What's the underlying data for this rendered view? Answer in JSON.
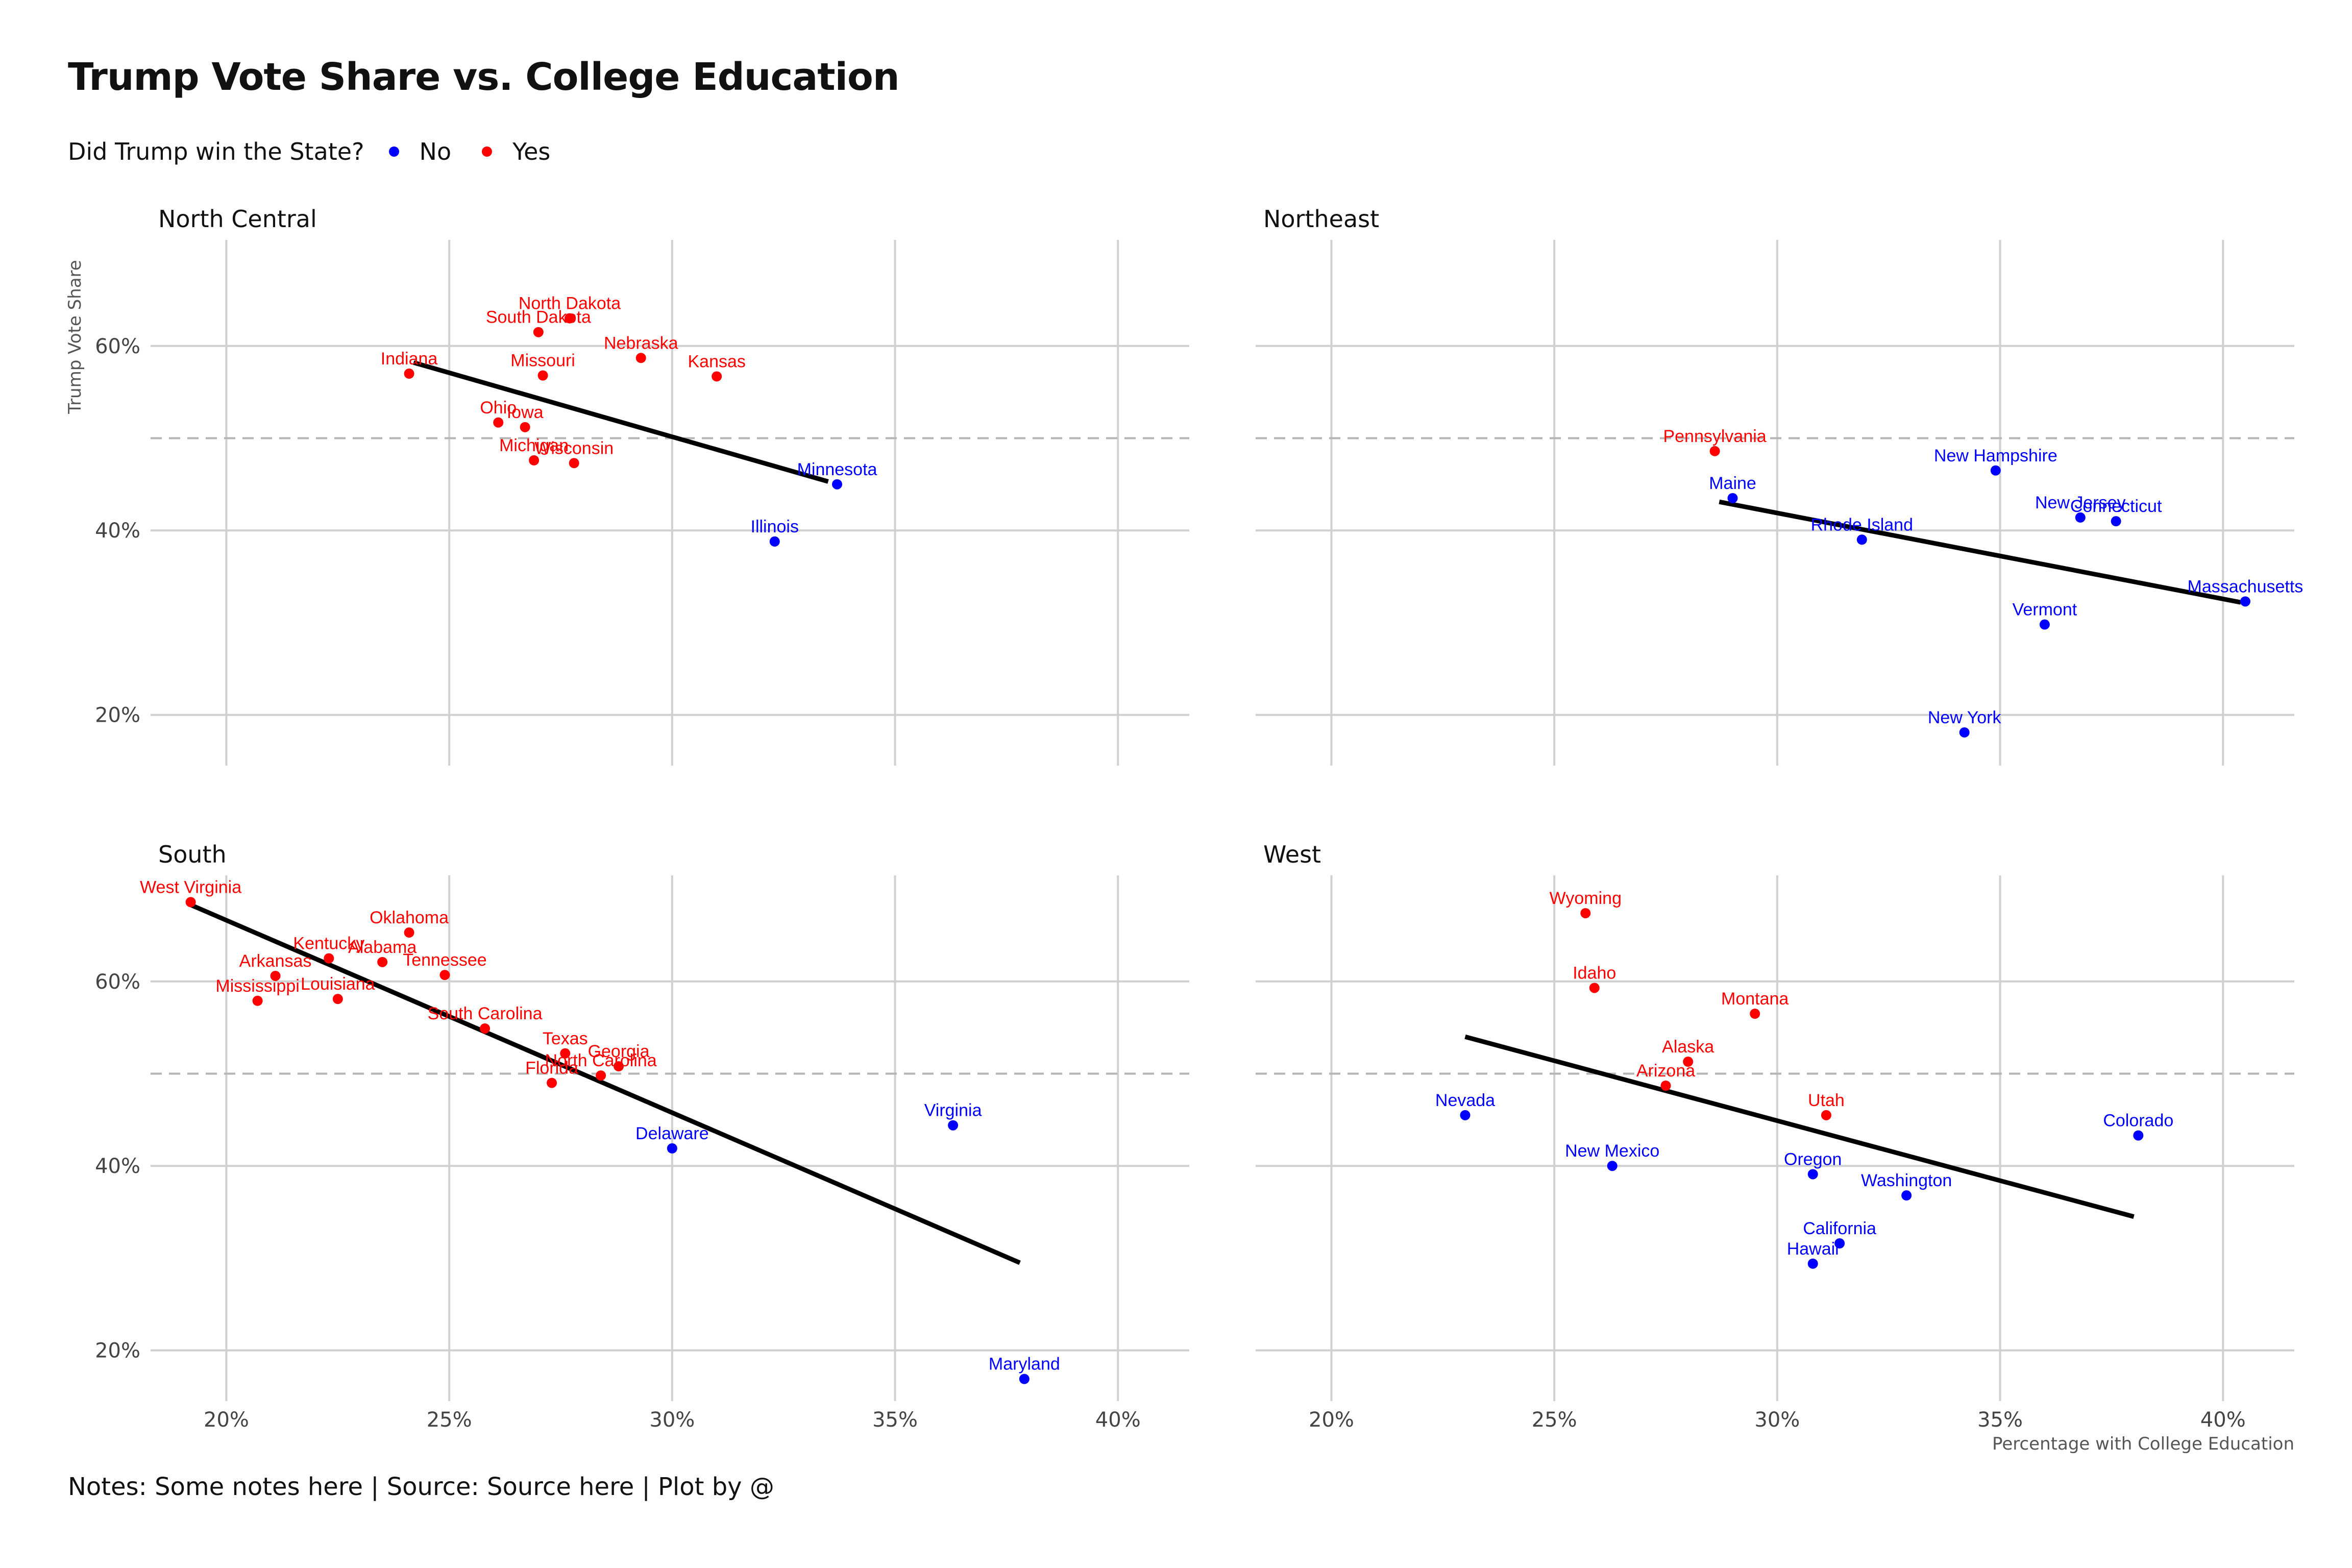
{
  "title": "Trump Vote Share vs. College Education",
  "caption": "Notes: Some notes here | Source: Source here | Plot by @",
  "legend": {
    "title": "Did Trump win the State?",
    "items": [
      {
        "label": "No",
        "color": "#0000ff"
      },
      {
        "label": "Yes",
        "color": "#ff0000"
      }
    ]
  },
  "chart_data": {
    "type": "scatter",
    "xlabel": "Percentage with College Education",
    "ylabel": "Trump Vote Share",
    "xlim": [
      18.3,
      41.6
    ],
    "ylim": [
      14.5,
      71.5
    ],
    "x_ticks": [
      20,
      25,
      30,
      35,
      40
    ],
    "x_tick_labels": [
      "20%",
      "25%",
      "30%",
      "35%",
      "40%"
    ],
    "y_ticks": [
      20,
      40,
      60
    ],
    "y_tick_labels": [
      "20%",
      "40%",
      "60%"
    ],
    "reference_line_y": 50,
    "grid": true,
    "legend_position": "top-left",
    "colors": {
      "No": "#0000ff",
      "Yes": "#ff0000"
    },
    "panels": [
      {
        "name": "North Central",
        "trend": [
          [
            24.2,
            58.2
          ],
          [
            33.5,
            45.3
          ]
        ],
        "points": [
          {
            "label": "North Dakota",
            "x": 27.7,
            "y": 63.0,
            "won": "Yes"
          },
          {
            "label": "South Dakota",
            "x": 27.0,
            "y": 61.5,
            "won": "Yes"
          },
          {
            "label": "Nebraska",
            "x": 29.3,
            "y": 58.7,
            "won": "Yes"
          },
          {
            "label": "Kansas",
            "x": 31.0,
            "y": 56.7,
            "won": "Yes"
          },
          {
            "label": "Indiana",
            "x": 24.1,
            "y": 57.0,
            "won": "Yes"
          },
          {
            "label": "Missouri",
            "x": 27.1,
            "y": 56.8,
            "won": "Yes"
          },
          {
            "label": "Ohio",
            "x": 26.1,
            "y": 51.7,
            "won": "Yes"
          },
          {
            "label": "Iowa",
            "x": 26.7,
            "y": 51.2,
            "won": "Yes"
          },
          {
            "label": "Michigan",
            "x": 26.9,
            "y": 47.6,
            "won": "Yes"
          },
          {
            "label": "Wisconsin",
            "x": 27.8,
            "y": 47.3,
            "won": "Yes"
          },
          {
            "label": "Minnesota",
            "x": 33.7,
            "y": 45.0,
            "won": "No"
          },
          {
            "label": "Illinois",
            "x": 32.3,
            "y": 38.8,
            "won": "No"
          }
        ]
      },
      {
        "name": "Northeast",
        "trend": [
          [
            28.7,
            43.1
          ],
          [
            40.4,
            32.2
          ]
        ],
        "points": [
          {
            "label": "Pennsylvania",
            "x": 28.6,
            "y": 48.6,
            "won": "Yes"
          },
          {
            "label": "New Hampshire",
            "x": 34.9,
            "y": 46.5,
            "won": "No"
          },
          {
            "label": "Maine",
            "x": 29.0,
            "y": 43.5,
            "won": "No"
          },
          {
            "label": "New Jersey",
            "x": 36.8,
            "y": 41.4,
            "won": "No"
          },
          {
            "label": "Connecticut",
            "x": 37.6,
            "y": 41.0,
            "won": "No"
          },
          {
            "label": "Rhode Island",
            "x": 31.9,
            "y": 39.0,
            "won": "No"
          },
          {
            "label": "Massachusetts",
            "x": 40.5,
            "y": 32.3,
            "won": "No"
          },
          {
            "label": "Vermont",
            "x": 36.0,
            "y": 29.8,
            "won": "No"
          },
          {
            "label": "New York",
            "x": 34.2,
            "y": 18.1,
            "won": "No"
          }
        ]
      },
      {
        "name": "South",
        "trend": [
          [
            19.2,
            68.3
          ],
          [
            37.8,
            29.5
          ]
        ],
        "points": [
          {
            "label": "West Virginia",
            "x": 19.2,
            "y": 68.6,
            "won": "Yes"
          },
          {
            "label": "Oklahoma",
            "x": 24.1,
            "y": 65.3,
            "won": "Yes"
          },
          {
            "label": "Kentucky",
            "x": 22.3,
            "y": 62.5,
            "won": "Yes"
          },
          {
            "label": "Alabama",
            "x": 23.5,
            "y": 62.1,
            "won": "Yes"
          },
          {
            "label": "Tennessee",
            "x": 24.9,
            "y": 60.7,
            "won": "Yes"
          },
          {
            "label": "Arkansas",
            "x": 21.1,
            "y": 60.6,
            "won": "Yes"
          },
          {
            "label": "Mississippi",
            "x": 20.7,
            "y": 57.9,
            "won": "Yes"
          },
          {
            "label": "Louisiana",
            "x": 22.5,
            "y": 58.1,
            "won": "Yes"
          },
          {
            "label": "South Carolina",
            "x": 25.8,
            "y": 54.9,
            "won": "Yes"
          },
          {
            "label": "Texas",
            "x": 27.6,
            "y": 52.2,
            "won": "Yes"
          },
          {
            "label": "Georgia",
            "x": 28.8,
            "y": 50.8,
            "won": "Yes"
          },
          {
            "label": "North Carolina",
            "x": 28.4,
            "y": 49.8,
            "won": "Yes"
          },
          {
            "label": "Florida",
            "x": 27.3,
            "y": 49.0,
            "won": "Yes"
          },
          {
            "label": "Virginia",
            "x": 36.3,
            "y": 44.4,
            "won": "No"
          },
          {
            "label": "Delaware",
            "x": 30.0,
            "y": 41.9,
            "won": "No"
          },
          {
            "label": "Maryland",
            "x": 37.9,
            "y": 16.9,
            "won": "No"
          }
        ]
      },
      {
        "name": "West",
        "trend": [
          [
            23.0,
            54.0
          ],
          [
            38.0,
            34.5
          ]
        ],
        "points": [
          {
            "label": "Wyoming",
            "x": 25.7,
            "y": 67.4,
            "won": "Yes"
          },
          {
            "label": "Idaho",
            "x": 25.9,
            "y": 59.3,
            "won": "Yes"
          },
          {
            "label": "Montana",
            "x": 29.5,
            "y": 56.5,
            "won": "Yes"
          },
          {
            "label": "Alaska",
            "x": 28.0,
            "y": 51.3,
            "won": "Yes"
          },
          {
            "label": "Arizona",
            "x": 27.5,
            "y": 48.7,
            "won": "Yes"
          },
          {
            "label": "Utah",
            "x": 31.1,
            "y": 45.5,
            "won": "Yes"
          },
          {
            "label": "Nevada",
            "x": 23.0,
            "y": 45.5,
            "won": "No"
          },
          {
            "label": "Colorado",
            "x": 38.1,
            "y": 43.3,
            "won": "No"
          },
          {
            "label": "New Mexico",
            "x": 26.3,
            "y": 40.0,
            "won": "No"
          },
          {
            "label": "Oregon",
            "x": 30.8,
            "y": 39.1,
            "won": "No"
          },
          {
            "label": "Washington",
            "x": 32.9,
            "y": 36.8,
            "won": "No"
          },
          {
            "label": "California",
            "x": 31.4,
            "y": 31.6,
            "won": "No"
          },
          {
            "label": "Hawaii",
            "x": 30.8,
            "y": 29.4,
            "won": "No"
          }
        ]
      }
    ]
  }
}
